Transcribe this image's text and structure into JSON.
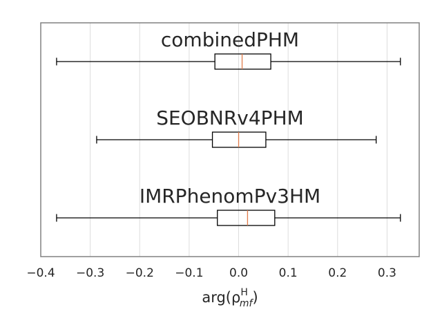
{
  "chart_data": {
    "type": "boxplot",
    "orientation": "horizontal",
    "xlabel": "arg(ρ",
    "xlabel_superscript": "H",
    "xlabel_subscript": "mf",
    "xlabel_close": ")",
    "xlim": [
      -0.4,
      0.365
    ],
    "xticks": [
      -0.4,
      -0.3,
      -0.2,
      -0.1,
      0.0,
      0.1,
      0.2,
      0.3
    ],
    "xtick_labels": [
      "−0.4",
      "−0.3",
      "−0.2",
      "−0.1",
      "0.0",
      "0.1",
      "0.2",
      "0.3"
    ],
    "grid": "vertical",
    "colors": {
      "box": "#000000",
      "median": "#e07b4a",
      "grid": "#dcdcdc",
      "frame": "#808080",
      "text": "#262626"
    },
    "series": [
      {
        "name": "combinedPHM",
        "whisker_low": -0.368,
        "q1": -0.048,
        "median": 0.007,
        "q3": 0.065,
        "whisker_high": 0.327
      },
      {
        "name": "SEOBNRv4PHM",
        "whisker_low": -0.287,
        "q1": -0.053,
        "median": 0.0,
        "q3": 0.055,
        "whisker_high": 0.278
      },
      {
        "name": "IMRPhenomPv3HM",
        "whisker_low": -0.368,
        "q1": -0.043,
        "median": 0.018,
        "q3": 0.073,
        "whisker_high": 0.327
      }
    ]
  }
}
